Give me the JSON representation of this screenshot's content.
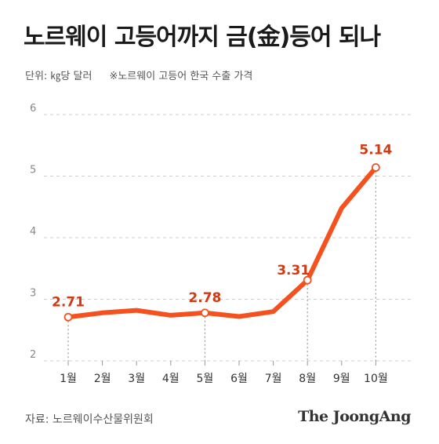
{
  "header": {
    "title": "노르웨이 고등어까지 금(金)등어 되나",
    "unit_label": "단위: ㎏당 달러",
    "note": "※노르웨이 고등어 한국 수출 가격"
  },
  "footer": {
    "source": "자료: 노르웨이수산물위원회",
    "brand": "The JoongAng"
  },
  "colors": {
    "line": "#f4511e",
    "label": "#d13a12",
    "grid": "#cfcfcf",
    "axis_text": "#888888"
  },
  "chart_data": {
    "type": "line",
    "title": "노르웨이 고등어까지 금(金)등어 되나",
    "xlabel": "",
    "ylabel": "단위: ㎏당 달러",
    "categories": [
      "1월",
      "2월",
      "3월",
      "4월",
      "5월",
      "6월",
      "7월",
      "8월",
      "9월",
      "10월"
    ],
    "series": [
      {
        "values": [
          2.71,
          2.78,
          2.82,
          2.74,
          2.78,
          2.72,
          2.8,
          3.31,
          4.48,
          5.14
        ]
      }
    ],
    "labeled_points": [
      {
        "index": 0,
        "label": "2.71"
      },
      {
        "index": 4,
        "label": "2.78"
      },
      {
        "index": 7,
        "label": "3.31"
      },
      {
        "index": 9,
        "label": "5.14"
      }
    ],
    "ylim": [
      2,
      6
    ],
    "yticks": [
      "2",
      "3",
      "4",
      "5",
      "6"
    ],
    "grid": "horizontal dashed"
  }
}
